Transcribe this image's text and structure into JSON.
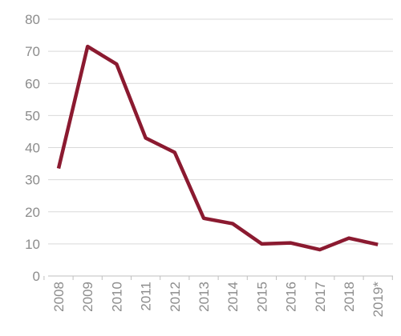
{
  "chart_data": {
    "type": "line",
    "title": "",
    "xlabel": "",
    "ylabel": "",
    "categories": [
      "2008",
      "2009",
      "2010",
      "2011",
      "2012",
      "2013",
      "2014",
      "2015",
      "2016",
      "2017",
      "2018",
      "2019*"
    ],
    "series": [
      {
        "values": [
          33.5,
          71.5,
          66.0,
          43.0,
          38.5,
          18.0,
          16.3,
          10.0,
          10.3,
          8.2,
          11.8,
          9.8
        ],
        "color": "#8b1a30"
      }
    ],
    "ylim": [
      0,
      80
    ],
    "yticks": [
      0,
      10,
      20,
      30,
      40,
      50,
      60,
      70,
      80
    ],
    "grid": true,
    "legend": "none",
    "colors": {
      "line": "#8b1a30",
      "grid": "#d9d9d9",
      "axis": "#bfbfbf",
      "tick_text": "#8c8c8c"
    }
  }
}
